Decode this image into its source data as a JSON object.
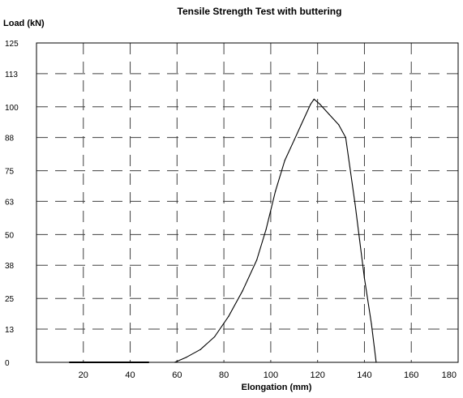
{
  "chart_data": {
    "type": "line",
    "title": "Tensile Strength Test with buttering",
    "xlabel": "Elongation (mm)",
    "ylabel": "Load (kN)",
    "xlim": [
      0,
      180
    ],
    "ylim": [
      0,
      125
    ],
    "x_ticks": [
      20,
      40,
      60,
      80,
      100,
      120,
      140,
      160,
      180
    ],
    "x_tick_labels": [
      "20",
      "40",
      "60",
      "80",
      "100",
      "120",
      "140",
      "160",
      "180"
    ],
    "y_ticks": [
      0,
      13,
      25,
      38,
      50,
      63,
      75,
      88,
      100,
      113,
      125
    ],
    "y_tick_labels": [
      "0",
      "13",
      "25",
      "38",
      "50",
      "63",
      "75",
      "88",
      "100",
      "113",
      "125"
    ],
    "grid": "dashed",
    "legend": "none",
    "series": [
      {
        "color": "#000000",
        "segments": [
          {
            "x": [
              14,
              48
            ],
            "y": [
              0,
              0
            ]
          },
          {
            "x": [
              59,
              64,
              70,
              76,
              82,
              88,
              94,
              98,
              102,
              106,
              110,
              113,
              117,
              118.5,
              121,
              125,
              129,
              132,
              136,
              140,
              143,
              145
            ],
            "y": [
              0,
              2,
              5,
              10,
              18,
              28,
              40,
              52,
              67,
              79,
              87,
              93,
              101,
              103,
              101,
              97,
              93,
              88,
              62,
              33,
              15,
              0
            ]
          }
        ]
      }
    ],
    "colors": {
      "grid": "#404040",
      "axes": "#000000",
      "background": "#ffffff"
    }
  }
}
